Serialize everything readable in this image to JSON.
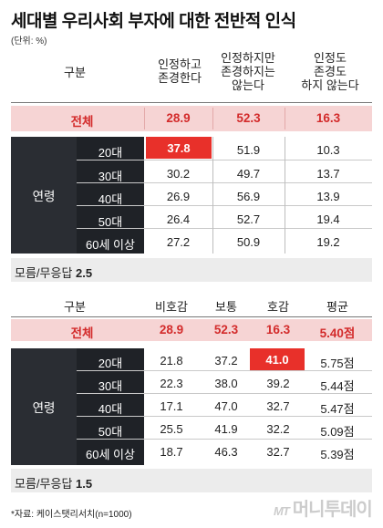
{
  "title": "세대별 우리사회 부자에 대한 전반적 인식",
  "unit": "(단위: %)",
  "table1": {
    "headers": [
      "구분",
      "인정하고\n존경한다",
      "인정하지만\n존경하지는\n않는다",
      "인정도\n존경도\n하지 않는다"
    ],
    "total": {
      "label": "전체",
      "values": [
        "28.9",
        "52.3",
        "16.3"
      ]
    },
    "group_label": "연령",
    "rows": [
      {
        "label": "20대",
        "values": [
          "37.8",
          "51.9",
          "10.3"
        ]
      },
      {
        "label": "30대",
        "values": [
          "30.2",
          "49.7",
          "13.7"
        ]
      },
      {
        "label": "40대",
        "values": [
          "26.9",
          "56.9",
          "13.9"
        ]
      },
      {
        "label": "50대",
        "values": [
          "26.4",
          "52.7",
          "19.4"
        ]
      },
      {
        "label": "60세 이상",
        "values": [
          "27.2",
          "50.9",
          "19.2"
        ]
      }
    ],
    "note_label": "모름/무응답",
    "note_value": "2.5"
  },
  "table2": {
    "headers": [
      "구분",
      "비호감",
      "보통",
      "호감",
      "평균"
    ],
    "total": {
      "label": "전체",
      "values": [
        "28.9",
        "52.3",
        "16.3",
        "5.40점"
      ]
    },
    "group_label": "연령",
    "rows": [
      {
        "label": "20대",
        "values": [
          "21.8",
          "37.2",
          "41.0",
          "5.75점"
        ]
      },
      {
        "label": "30대",
        "values": [
          "22.3",
          "38.0",
          "39.2",
          "5.44점"
        ]
      },
      {
        "label": "40대",
        "values": [
          "17.1",
          "47.0",
          "32.7",
          "5.47점"
        ]
      },
      {
        "label": "50대",
        "values": [
          "25.5",
          "41.9",
          "32.2",
          "5.09점"
        ]
      },
      {
        "label": "60세 이상",
        "values": [
          "18.7",
          "46.3",
          "32.7",
          "5.39점"
        ]
      }
    ],
    "note_label": "모름/무응답",
    "note_value": "1.5"
  },
  "footer": "*자료: 케이스탯리서치(n=1000)",
  "brand": {
    "mt": "MT",
    "name": "머니투데이"
  },
  "colors": {
    "highlight": "#e8302a",
    "total_bg": "#f6d4d4",
    "total_text": "#d32b2b",
    "group_bg": "#1f2227"
  }
}
